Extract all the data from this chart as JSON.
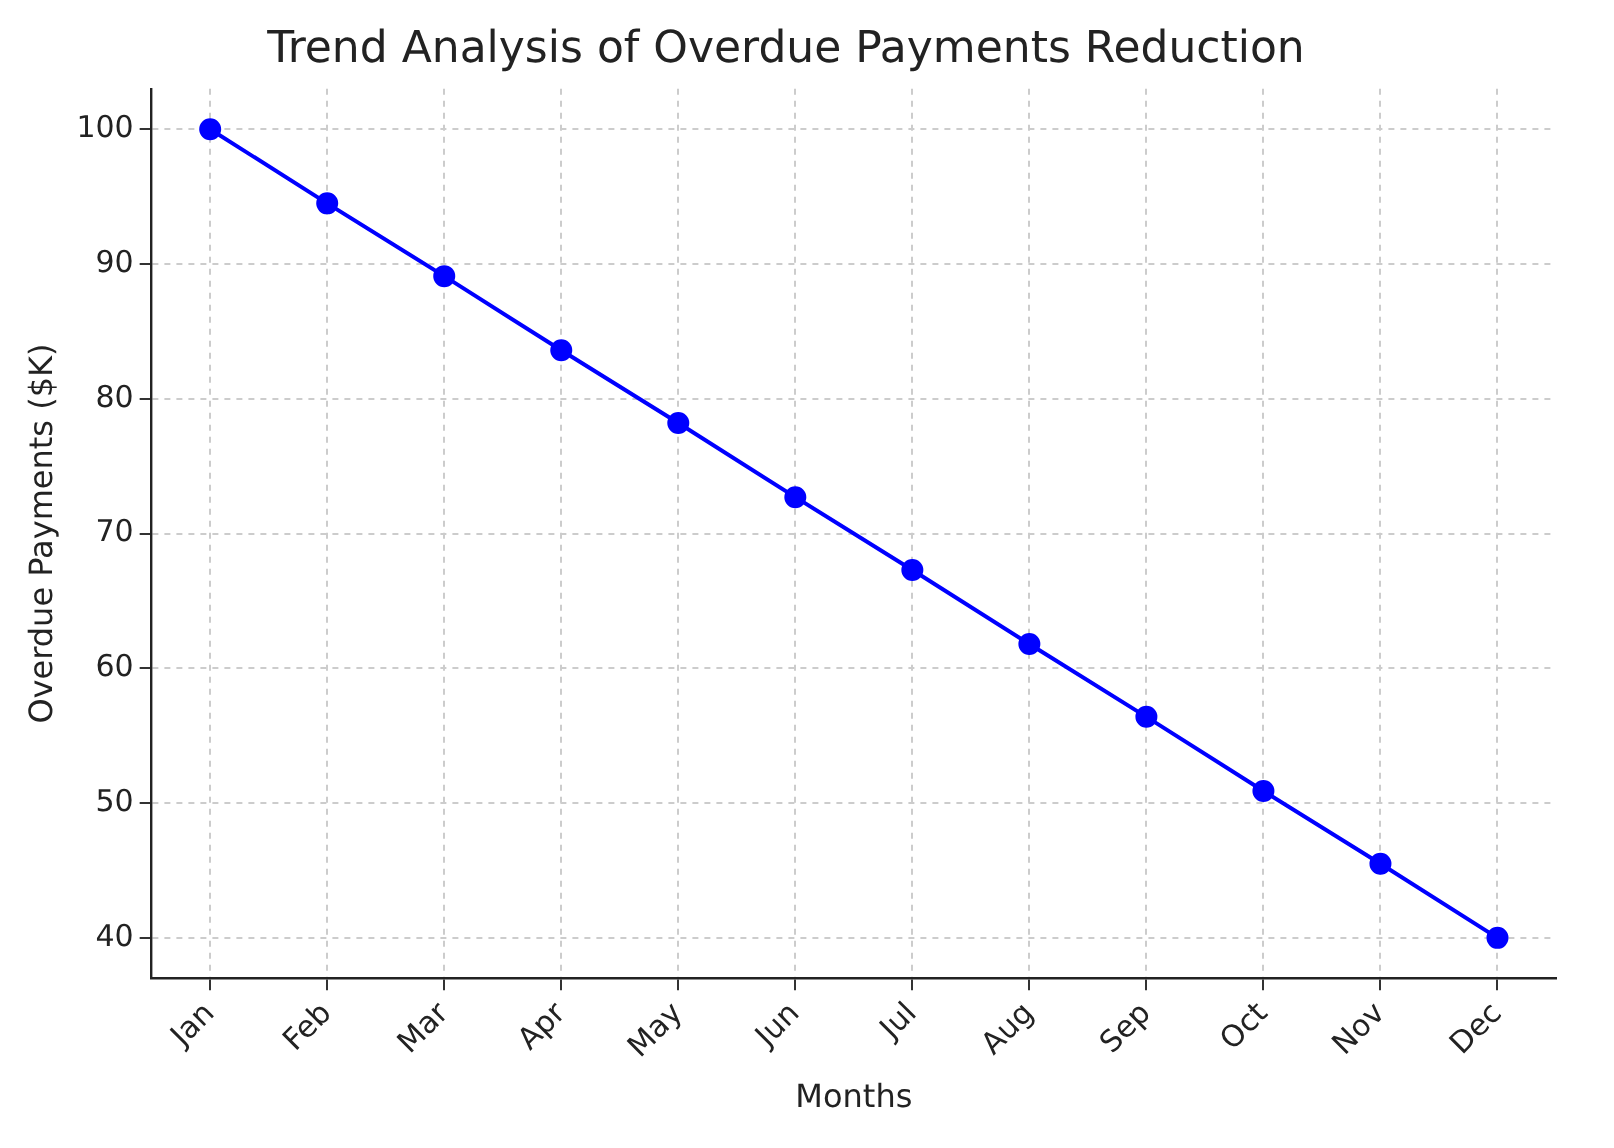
{
  "chart_data": {
    "type": "line",
    "title": "Trend Analysis of Overdue Payments Reduction",
    "xlabel": "Months",
    "ylabel": "Overdue Payments ($K)",
    "categories": [
      "Jan",
      "Feb",
      "Mar",
      "Apr",
      "May",
      "Jun",
      "Jul",
      "Aug",
      "Sep",
      "Oct",
      "Nov",
      "Dec"
    ],
    "series": [
      {
        "color": "#0000ff",
        "values": [
          100,
          94.5,
          89.1,
          83.6,
          78.2,
          72.7,
          67.3,
          61.8,
          56.4,
          50.9,
          45.5,
          40
        ]
      }
    ],
    "ylim": [
      37,
      103
    ],
    "yticks": [
      40,
      50,
      60,
      70,
      80,
      90,
      100
    ],
    "grid": true,
    "marker": "circle",
    "legend": false
  }
}
